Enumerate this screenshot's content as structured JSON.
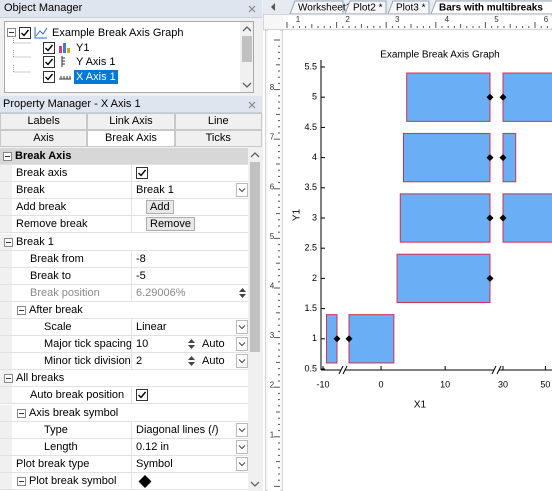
{
  "object_manager": {
    "title": "Object Manager",
    "tree": [
      {
        "label": "Example Break Axis Graph",
        "depth": 0
      },
      {
        "label": "Y1",
        "depth": 1
      },
      {
        "label": "Y Axis 1",
        "depth": 1
      },
      {
        "label": "X Axis 1",
        "depth": 1,
        "selected": true
      }
    ]
  },
  "property_manager": {
    "title": "Property Manager - X Axis 1",
    "tabs": [
      [
        "Labels",
        "Link Axis",
        "Line"
      ],
      [
        "Axis",
        "Break Axis",
        "Ticks"
      ]
    ],
    "active_tab": [
      1,
      1
    ],
    "rows": [
      {
        "label": "Break Axis",
        "section": true
      },
      {
        "label": "Break axis",
        "depth": 0,
        "check": true
      },
      {
        "label": "Break",
        "depth": 0,
        "value": "Break 1",
        "dropdown": true
      },
      {
        "label": "Add break",
        "depth": 0,
        "button": "Add"
      },
      {
        "label": "Remove break",
        "depth": 0,
        "button": "Remove"
      },
      {
        "label": "Break 1",
        "depth": 0,
        "group": true
      },
      {
        "label": "Break from",
        "depth": 1,
        "value": "-8"
      },
      {
        "label": "Break to",
        "depth": 1,
        "value": "-5"
      },
      {
        "label": "Break position",
        "depth": 1,
        "value": "6.29006%",
        "disabled": true,
        "spin": true
      },
      {
        "label": "After break",
        "depth": 1,
        "group": true
      },
      {
        "label": "Scale",
        "depth": 2,
        "value": "Linear",
        "dropdown": true
      },
      {
        "label": "Major tick spacing",
        "depth": 2,
        "value": "10",
        "spin": true,
        "auto": "Auto"
      },
      {
        "label": "Minor tick division",
        "depth": 2,
        "value": "2",
        "spin": true,
        "auto": "Auto"
      },
      {
        "label": "All breaks",
        "depth": 0,
        "group": true
      },
      {
        "label": "Auto break position",
        "depth": 1,
        "check": true
      },
      {
        "label": "Axis break symbol",
        "depth": 1,
        "group": true
      },
      {
        "label": "Type",
        "depth": 2,
        "value": "Diagonal lines (/)",
        "dropdown": true
      },
      {
        "label": "Length",
        "depth": 2,
        "value": "0.12 in",
        "dropdown": true
      },
      {
        "label": "Plot break type",
        "depth": 0,
        "value": "Symbol",
        "dropdown": true
      },
      {
        "label": "Plot break symbol",
        "depth": 1,
        "group": true,
        "symbol": "diamond"
      }
    ]
  },
  "document_tabs": {
    "tabs": [
      "Worksheet1",
      "Plot2 *",
      "Plot3 *",
      "Bars with multibreaks"
    ],
    "active": 3
  },
  "rulers": {
    "horizontal": [
      1,
      2,
      3,
      4,
      5,
      6
    ],
    "vertical": [
      8,
      7,
      6,
      5,
      4,
      3,
      2,
      1
    ]
  },
  "chart_data": {
    "type": "bar",
    "orientation": "horizontal",
    "title": "Example Break Axis Graph",
    "x_label": "X1",
    "y_label": "Y1",
    "y": [
      1,
      2,
      3,
      4,
      5
    ],
    "starts": [
      -9.5,
      2.5,
      3,
      3.5,
      4
    ],
    "ends": [
      2,
      17,
      55,
      36,
      55
    ],
    "bar_height": 0.8,
    "color": "#6aaef5",
    "edge_color": "#d0304f",
    "break_symbol_color": "#000000",
    "xlim": [
      -10,
      55
    ],
    "xticks": [
      -10,
      0,
      10,
      30,
      50
    ],
    "breaks": [
      [
        -8,
        -5
      ],
      [
        17,
        30
      ]
    ],
    "ylim": [
      0.5,
      5.5
    ],
    "yticks": [
      0.5,
      1,
      1.5,
      2,
      2.5,
      3,
      3.5,
      4,
      4.5,
      5,
      5.5
    ]
  }
}
